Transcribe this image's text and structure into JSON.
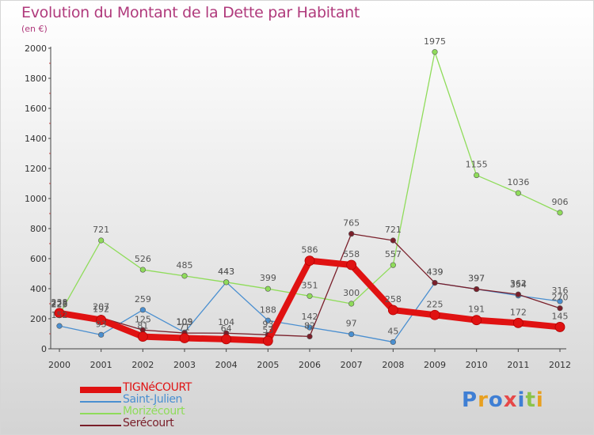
{
  "header": {
    "title": "Evolution du Montant de la Dette par Habitant",
    "subtitle": "(en €)"
  },
  "logo": {
    "text": "Proxiti",
    "colors": [
      "#3f7fd4",
      "#e8a020",
      "#3f7fd4",
      "#e64848",
      "#3f7fd4",
      "#8bc34a",
      "#e8a020"
    ]
  },
  "colors": {
    "title": "#b03a7c",
    "axis": "#444444",
    "tick_text": "#333333",
    "value_text": "#555555"
  },
  "chart_data": {
    "type": "line",
    "title": "Evolution du Montant de la Dette par Habitant",
    "subtitle": "(en €)",
    "xlabel": "",
    "ylabel": "",
    "categories": [
      "2000",
      "2001",
      "2002",
      "2003",
      "2004",
      "2005",
      "2006",
      "2007",
      "2008",
      "2009",
      "2010",
      "2011",
      "2012"
    ],
    "ylim": [
      0,
      2000
    ],
    "yticks": [
      0,
      200,
      400,
      600,
      800,
      1000,
      1200,
      1400,
      1600,
      1800,
      2000
    ],
    "grid": false,
    "legend_position": "bottom-left",
    "series": [
      {
        "name": "TIGNéCOURT",
        "color": "#e01212",
        "thick": true,
        "values": [
          238,
          192,
          81,
          71,
          64,
          53,
          586,
          558,
          258,
          225,
          191,
          172,
          145
        ]
      },
      {
        "name": "Saint-Julien",
        "color": "#4a8fd0",
        "thick": false,
        "values": [
          152,
          93,
          259,
          109,
          443,
          188,
          142,
          97,
          45,
          439,
          397,
          354,
          316
        ]
      },
      {
        "name": "Morizécourt",
        "color": "#8fdc5a",
        "thick": false,
        "values": [
          228,
          721,
          526,
          485,
          443,
          399,
          351,
          300,
          557,
          1975,
          1155,
          1036,
          906
        ]
      },
      {
        "name": "Serécourt",
        "color": "#7a1f2a",
        "thick": false,
        "values": [
          223,
          207,
          125,
          105,
          104,
          93,
          82,
          765,
          721,
          439,
          397,
          362,
          270
        ]
      }
    ]
  }
}
